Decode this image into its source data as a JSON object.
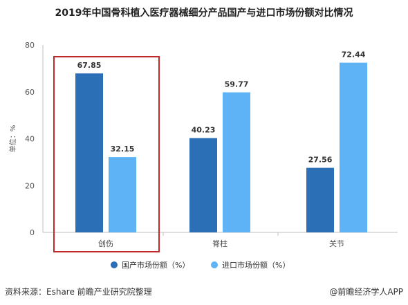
{
  "chart_data": {
    "type": "bar",
    "title": "2019年中国骨科植入医疗器械细分产品国产与进口市场份额对比情况",
    "ylabel": "单位：%",
    "xlabel": "",
    "ylim": [
      0,
      80
    ],
    "yticks": [
      0,
      20,
      40,
      60,
      80
    ],
    "categories": [
      "创伤",
      "脊柱",
      "关节"
    ],
    "series": [
      {
        "name": "国产市场份额（%）",
        "values": [
          67.85,
          40.23,
          27.56
        ],
        "color": "#2b6fb6"
      },
      {
        "name": "进口市场份额（%）",
        "values": [
          32.15,
          59.77,
          72.44
        ],
        "color": "#5db3f5"
      }
    ],
    "grid": false,
    "legend_position": "bottom",
    "highlight": {
      "category": "创伤",
      "color": "#c0282d"
    }
  },
  "footer": {
    "source": "资料来源：Eshare 前瞻产业研究院整理",
    "brand": "@前瞻经济学人APP"
  }
}
